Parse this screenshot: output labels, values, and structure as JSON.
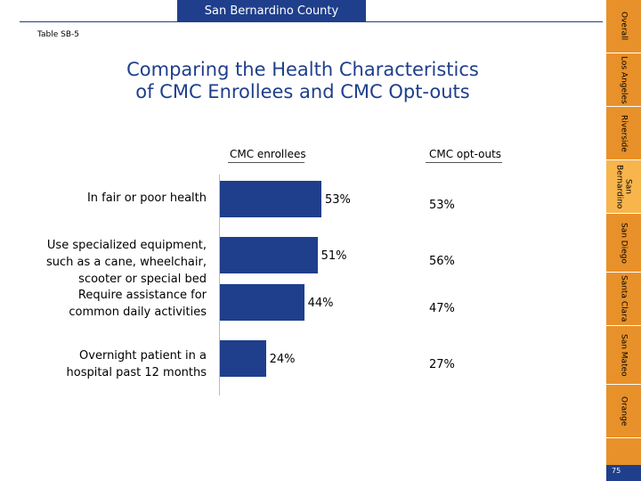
{
  "banner": {
    "county": "San Bernardino County"
  },
  "table_id": "Table SB-5",
  "title": {
    "line1": "Comparing the Health Characteristics",
    "line2": "of CMC Enrollees and CMC Opt-outs"
  },
  "columns": {
    "enrollees": "CMC enrollees",
    "optouts": "CMC opt-outs"
  },
  "chart_data": {
    "type": "bar",
    "orientation": "horizontal",
    "title": "Comparing the Health Characteristics of CMC Enrollees and CMC Opt-outs",
    "categories": [
      [
        "In fair or poor health"
      ],
      [
        "Use specialized equipment,",
        "such as a cane, wheelchair,",
        "scooter or special bed"
      ],
      [
        "Require assistance for",
        "common daily activities"
      ],
      [
        "Overnight patient in a",
        "hospital past 12 months"
      ]
    ],
    "series": [
      {
        "name": "CMC enrollees",
        "values": [
          53,
          51,
          44,
          24
        ],
        "labels": [
          "53%",
          "51%",
          "44%",
          "24%"
        ],
        "color": "#1f3f8c"
      },
      {
        "name": "CMC opt-outs",
        "values": [
          53,
          56,
          47,
          27
        ],
        "labels": [
          "53%",
          "56%",
          "47%",
          "27%"
        ]
      }
    ],
    "xlim": [
      0,
      100
    ],
    "xlabel": "",
    "ylabel": ""
  },
  "nav": {
    "tabs": [
      "Overall",
      "Los Angeles",
      "Riverside",
      "San Bernardino",
      "San Diego",
      "Santa Clara",
      "San Mateo",
      "Orange"
    ],
    "active": "San Bernardino"
  },
  "page_number": "75",
  "colors": {
    "brand_blue": "#1f3f8c",
    "tab_orange": "#e8912a",
    "tab_active": "#f7b54c"
  }
}
